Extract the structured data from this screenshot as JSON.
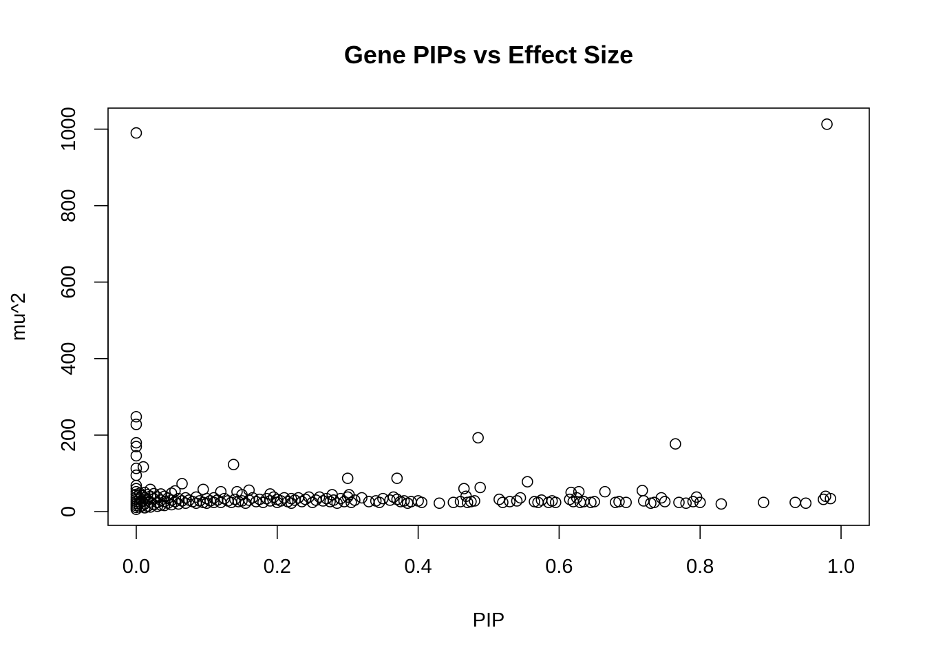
{
  "chart_data": {
    "type": "scatter",
    "title": "Gene PIPs vs Effect Size",
    "xlabel": "PIP",
    "ylabel": "mu^2",
    "xlim": [
      -0.04,
      1.04
    ],
    "ylim": [
      -36,
      1055
    ],
    "xticks": [
      0.0,
      0.2,
      0.4,
      0.6,
      0.8,
      1.0
    ],
    "xtick_labels": [
      "0.0",
      "0.2",
      "0.4",
      "0.6",
      "0.8",
      "1.0"
    ],
    "yticks": [
      0,
      200,
      400,
      600,
      800,
      1000
    ],
    "ytick_labels": [
      "0",
      "200",
      "400",
      "600",
      "800",
      "1000"
    ],
    "grid": false,
    "marker": "open-circle",
    "point_color": "#000000",
    "series": [
      {
        "points": [
          [
            0.0,
            990
          ],
          [
            0.98,
            1013
          ],
          [
            0.0,
            248
          ],
          [
            0.0,
            228
          ],
          [
            0.0,
            180
          ],
          [
            0.0,
            170
          ],
          [
            0.0,
            146
          ],
          [
            0.0,
            113
          ],
          [
            0.0,
            95
          ],
          [
            0.01,
            117
          ],
          [
            0.0,
            68
          ],
          [
            0.0,
            60
          ],
          [
            0.0,
            52
          ],
          [
            0.0,
            45
          ],
          [
            0.0,
            38
          ],
          [
            0.0,
            32
          ],
          [
            0.0,
            26
          ],
          [
            0.0,
            21
          ],
          [
            0.0,
            16
          ],
          [
            0.0,
            11
          ],
          [
            0.0,
            6
          ],
          [
            0.005,
            48
          ],
          [
            0.005,
            35
          ],
          [
            0.005,
            22
          ],
          [
            0.005,
            12
          ],
          [
            0.008,
            42
          ],
          [
            0.008,
            28
          ],
          [
            0.008,
            15
          ],
          [
            0.012,
            50
          ],
          [
            0.012,
            36
          ],
          [
            0.012,
            20
          ],
          [
            0.012,
            10
          ],
          [
            0.016,
            44
          ],
          [
            0.016,
            30
          ],
          [
            0.016,
            14
          ],
          [
            0.02,
            58
          ],
          [
            0.02,
            40
          ],
          [
            0.02,
            25
          ],
          [
            0.02,
            12
          ],
          [
            0.025,
            47
          ],
          [
            0.025,
            33
          ],
          [
            0.025,
            18
          ],
          [
            0.03,
            38
          ],
          [
            0.03,
            24
          ],
          [
            0.03,
            14
          ],
          [
            0.035,
            46
          ],
          [
            0.035,
            30
          ],
          [
            0.035,
            17
          ],
          [
            0.04,
            40
          ],
          [
            0.04,
            26
          ],
          [
            0.04,
            16
          ],
          [
            0.045,
            35
          ],
          [
            0.045,
            22
          ],
          [
            0.05,
            48
          ],
          [
            0.05,
            30
          ],
          [
            0.05,
            18
          ],
          [
            0.055,
            54
          ],
          [
            0.055,
            26
          ],
          [
            0.06,
            34
          ],
          [
            0.06,
            20
          ],
          [
            0.065,
            73
          ],
          [
            0.065,
            28
          ],
          [
            0.07,
            36
          ],
          [
            0.07,
            22
          ],
          [
            0.075,
            30
          ],
          [
            0.08,
            26
          ],
          [
            0.085,
            38
          ],
          [
            0.085,
            22
          ],
          [
            0.09,
            28
          ],
          [
            0.095,
            58
          ],
          [
            0.095,
            24
          ],
          [
            0.1,
            34
          ],
          [
            0.1,
            22
          ],
          [
            0.105,
            28
          ],
          [
            0.11,
            36
          ],
          [
            0.11,
            24
          ],
          [
            0.115,
            30
          ],
          [
            0.12,
            52
          ],
          [
            0.12,
            24
          ],
          [
            0.125,
            34
          ],
          [
            0.13,
            28
          ],
          [
            0.135,
            24
          ],
          [
            0.138,
            123
          ],
          [
            0.14,
            32
          ],
          [
            0.143,
            52
          ],
          [
            0.145,
            26
          ],
          [
            0.15,
            44
          ],
          [
            0.15,
            28
          ],
          [
            0.155,
            22
          ],
          [
            0.16,
            56
          ],
          [
            0.16,
            30
          ],
          [
            0.165,
            36
          ],
          [
            0.17,
            26
          ],
          [
            0.175,
            32
          ],
          [
            0.18,
            24
          ],
          [
            0.185,
            34
          ],
          [
            0.19,
            46
          ],
          [
            0.19,
            28
          ],
          [
            0.195,
            38
          ],
          [
            0.2,
            24
          ],
          [
            0.2,
            32
          ],
          [
            0.205,
            28
          ],
          [
            0.21,
            36
          ],
          [
            0.215,
            26
          ],
          [
            0.22,
            34
          ],
          [
            0.22,
            22
          ],
          [
            0.225,
            30
          ],
          [
            0.23,
            36
          ],
          [
            0.235,
            26
          ],
          [
            0.24,
            32
          ],
          [
            0.245,
            38
          ],
          [
            0.25,
            24
          ],
          [
            0.255,
            30
          ],
          [
            0.26,
            38
          ],
          [
            0.265,
            28
          ],
          [
            0.27,
            34
          ],
          [
            0.275,
            26
          ],
          [
            0.278,
            44
          ],
          [
            0.28,
            30
          ],
          [
            0.285,
            22
          ],
          [
            0.29,
            34
          ],
          [
            0.295,
            26
          ],
          [
            0.3,
            87
          ],
          [
            0.3,
            38
          ],
          [
            0.302,
            44
          ],
          [
            0.305,
            24
          ],
          [
            0.31,
            30
          ],
          [
            0.32,
            36
          ],
          [
            0.33,
            26
          ],
          [
            0.34,
            28
          ],
          [
            0.345,
            24
          ],
          [
            0.35,
            34
          ],
          [
            0.36,
            30
          ],
          [
            0.365,
            38
          ],
          [
            0.37,
            87
          ],
          [
            0.37,
            32
          ],
          [
            0.375,
            26
          ],
          [
            0.38,
            28
          ],
          [
            0.385,
            22
          ],
          [
            0.39,
            26
          ],
          [
            0.4,
            28
          ],
          [
            0.405,
            24
          ],
          [
            0.43,
            22
          ],
          [
            0.45,
            24
          ],
          [
            0.46,
            26
          ],
          [
            0.465,
            60
          ],
          [
            0.468,
            40
          ],
          [
            0.47,
            24
          ],
          [
            0.475,
            26
          ],
          [
            0.48,
            28
          ],
          [
            0.485,
            193
          ],
          [
            0.488,
            63
          ],
          [
            0.515,
            32
          ],
          [
            0.52,
            24
          ],
          [
            0.53,
            26
          ],
          [
            0.54,
            28
          ],
          [
            0.545,
            36
          ],
          [
            0.555,
            78
          ],
          [
            0.565,
            26
          ],
          [
            0.57,
            24
          ],
          [
            0.575,
            30
          ],
          [
            0.585,
            24
          ],
          [
            0.59,
            28
          ],
          [
            0.595,
            24
          ],
          [
            0.615,
            32
          ],
          [
            0.617,
            50
          ],
          [
            0.62,
            26
          ],
          [
            0.625,
            36
          ],
          [
            0.628,
            52
          ],
          [
            0.63,
            24
          ],
          [
            0.635,
            26
          ],
          [
            0.645,
            24
          ],
          [
            0.65,
            26
          ],
          [
            0.665,
            52
          ],
          [
            0.68,
            24
          ],
          [
            0.685,
            26
          ],
          [
            0.695,
            24
          ],
          [
            0.718,
            55
          ],
          [
            0.72,
            28
          ],
          [
            0.73,
            22
          ],
          [
            0.735,
            24
          ],
          [
            0.745,
            36
          ],
          [
            0.75,
            26
          ],
          [
            0.765,
            177
          ],
          [
            0.77,
            24
          ],
          [
            0.78,
            22
          ],
          [
            0.79,
            26
          ],
          [
            0.795,
            38
          ],
          [
            0.8,
            24
          ],
          [
            0.83,
            20
          ],
          [
            0.89,
            24
          ],
          [
            0.935,
            24
          ],
          [
            0.95,
            22
          ],
          [
            0.975,
            32
          ],
          [
            0.978,
            40
          ],
          [
            0.985,
            34
          ]
        ]
      }
    ]
  }
}
